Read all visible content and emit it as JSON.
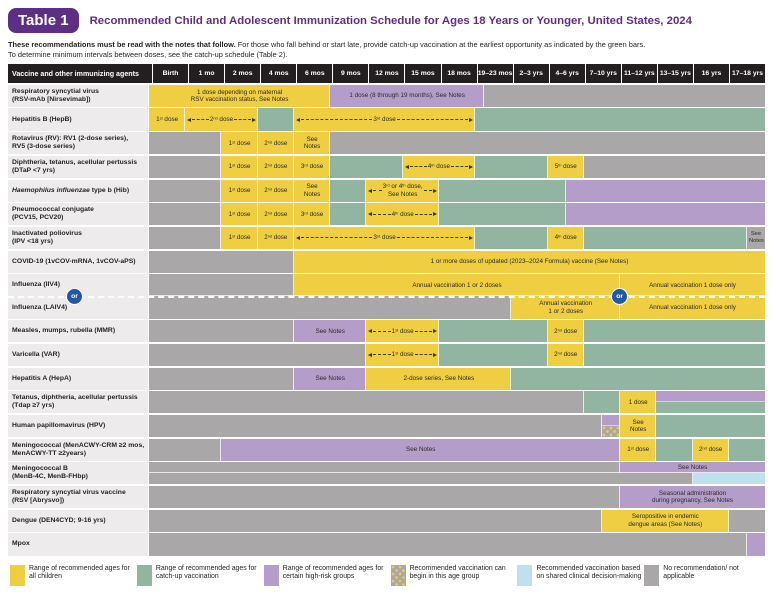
{
  "title": {
    "badge": "Table 1",
    "heading": "Recommended Child and Adolescent Immunization Schedule for Ages 18 Years or Younger, United States, 2024"
  },
  "intro": {
    "bold": "These recommendations must be read with the notes that follow.",
    "rest": "For those who fall behind or start late, provide catch-up vaccination at the earliest opportunity as indicated by the green bars.",
    "line2": "To determine minimum intervals between doses, see the catch-up schedule (Table 2)."
  },
  "colors": {
    "yellow": "#F0CE42",
    "green": "#92B5A1",
    "purple": "#B59DC9",
    "gray": "#A9A7A8",
    "lightblue": "#BFE0EE",
    "labelBg": "#EDEBEC",
    "hdrBg": "#231F20",
    "titlePurple": "#5C2E84",
    "orBlue": "#2058A6"
  },
  "schedule": {
    "corner_header": "Vaccine and other immunizing agents",
    "or_label": "or",
    "age_columns": [
      "Birth",
      "1 mo",
      "2 mos",
      "4 mos",
      "6 mos",
      "9 mos",
      "12 mos",
      "15 mos",
      "18 mos",
      "19–23 mos",
      "2–3 yrs",
      "4–6 yrs",
      "7–10 yrs",
      "11–12 yrs",
      "13–15 yrs",
      "16 yrs",
      "17–18 yrs"
    ],
    "rows": [
      {
        "id": "rsv-mab",
        "label": [
          "Respiratory syncytial virus",
          "(RSV-mAb [Nirsevimab])"
        ],
        "bars": [
          {
            "t": "y",
            "s": 0,
            "e": 5,
            "text": "1 dose depending on maternal\nRSV vaccination status, See Notes"
          },
          {
            "t": "p",
            "s": 5,
            "e": 9.25,
            "text": "1 dose (8 through 19 months), See Notes"
          },
          {
            "t": "gr",
            "s": 9.25,
            "e": 17
          }
        ]
      },
      {
        "id": "hepb",
        "label": [
          "Hepatitis B (HepB)"
        ],
        "bars": [
          {
            "t": "y",
            "s": 0,
            "e": 1,
            "text": "1st dose"
          },
          {
            "t": "y",
            "s": 1,
            "e": 3,
            "text": "2nd dose",
            "arrow": true
          },
          {
            "t": "g",
            "s": 3,
            "e": 4
          },
          {
            "t": "y",
            "s": 4,
            "e": 9,
            "text": "3rd dose",
            "arrow": true
          },
          {
            "t": "g",
            "s": 9,
            "e": 17
          }
        ]
      },
      {
        "id": "rotavirus",
        "label": [
          "Rotavirus (RV): RV1 (2-dose series),",
          "RV5 (3-dose series)"
        ],
        "bars": [
          {
            "t": "gr",
            "s": 0,
            "e": 2
          },
          {
            "t": "y",
            "s": 2,
            "e": 3,
            "text": "1st dose"
          },
          {
            "t": "y",
            "s": 3,
            "e": 4,
            "text": "2nd dose"
          },
          {
            "t": "y",
            "s": 4,
            "e": 5,
            "text": "See Notes"
          },
          {
            "t": "gr",
            "s": 5,
            "e": 17
          }
        ]
      },
      {
        "id": "dtap",
        "label": [
          "Diphtheria, tetanus, acellular pertussis",
          "(DTaP <7 yrs)"
        ],
        "bars": [
          {
            "t": "gr",
            "s": 0,
            "e": 2
          },
          {
            "t": "y",
            "s": 2,
            "e": 3,
            "text": "1st dose"
          },
          {
            "t": "y",
            "s": 3,
            "e": 4,
            "text": "2nd dose"
          },
          {
            "t": "y",
            "s": 4,
            "e": 5,
            "text": "3rd dose"
          },
          {
            "t": "g",
            "s": 5,
            "e": 7
          },
          {
            "t": "y",
            "s": 7,
            "e": 9,
            "text": "4th dose",
            "arrow": true
          },
          {
            "t": "g",
            "s": 9,
            "e": 11
          },
          {
            "t": "y",
            "s": 11,
            "e": 12,
            "text": "5th dose"
          },
          {
            "t": "gr",
            "s": 12,
            "e": 17
          }
        ]
      },
      {
        "id": "hib",
        "label": [
          "Haemophilus influenzae type b (Hib)"
        ],
        "italic": "Haemophilus influenzae",
        "bars": [
          {
            "t": "gr",
            "s": 0,
            "e": 2
          },
          {
            "t": "y",
            "s": 2,
            "e": 3,
            "text": "1st dose"
          },
          {
            "t": "y",
            "s": 3,
            "e": 4,
            "text": "2nd dose"
          },
          {
            "t": "y",
            "s": 4,
            "e": 5,
            "text": "See Notes"
          },
          {
            "t": "g",
            "s": 5,
            "e": 6
          },
          {
            "t": "y",
            "s": 6,
            "e": 8,
            "text": "3rd or 4th dose,\nSee Notes",
            "arrow": true
          },
          {
            "t": "g",
            "s": 8,
            "e": 11.5
          },
          {
            "t": "p",
            "s": 11.5,
            "e": 17
          }
        ]
      },
      {
        "id": "pcv",
        "label": [
          "Pneumococcal conjugate",
          "(PCV15, PCV20)"
        ],
        "bars": [
          {
            "t": "gr",
            "s": 0,
            "e": 2
          },
          {
            "t": "y",
            "s": 2,
            "e": 3,
            "text": "1st dose"
          },
          {
            "t": "y",
            "s": 3,
            "e": 4,
            "text": "2nd dose"
          },
          {
            "t": "y",
            "s": 4,
            "e": 5,
            "text": "3rd dose"
          },
          {
            "t": "g",
            "s": 5,
            "e": 6
          },
          {
            "t": "y",
            "s": 6,
            "e": 8,
            "text": "4th dose",
            "arrow": true
          },
          {
            "t": "g",
            "s": 8,
            "e": 11.5
          },
          {
            "t": "p",
            "s": 11.5,
            "e": 17
          }
        ]
      },
      {
        "id": "ipv",
        "label": [
          "Inactivated poliovirus",
          "(IPV <18 yrs)"
        ],
        "bars": [
          {
            "t": "gr",
            "s": 0,
            "e": 2
          },
          {
            "t": "y",
            "s": 2,
            "e": 3,
            "text": "1st dose"
          },
          {
            "t": "y",
            "s": 3,
            "e": 4,
            "text": "2nd dose"
          },
          {
            "t": "y",
            "s": 4,
            "e": 9,
            "text": "3rd dose",
            "arrow": true
          },
          {
            "t": "g",
            "s": 9,
            "e": 11
          },
          {
            "t": "y",
            "s": 11,
            "e": 12,
            "text": "4th dose"
          },
          {
            "t": "g",
            "s": 12,
            "e": 16.5
          },
          {
            "t": "gr",
            "s": 16.5,
            "e": 17,
            "text": "See\nNotes",
            "small": true
          }
        ]
      },
      {
        "id": "covid-19",
        "label": [
          "COVID-19 (1vCOV-mRNA, 1vCOV-aPS)"
        ],
        "bars": [
          {
            "t": "gr",
            "s": 0,
            "e": 4
          },
          {
            "t": "y",
            "s": 4,
            "e": 17,
            "text": "1 or more doses of updated (2023–2024 Formula) vaccine (See Notes)"
          }
        ]
      },
      {
        "id": "influenza-iiv4",
        "label": [
          "Influenza (IIV4)"
        ],
        "dashed_bottom": true,
        "or_circles": true,
        "bars": [
          {
            "t": "gr",
            "s": 0,
            "e": 4
          },
          {
            "t": "y",
            "s": 4,
            "e": 13,
            "text": "Annual vaccination 1 or 2 doses"
          },
          {
            "t": "y",
            "s": 13,
            "e": 17,
            "text": "Annual vaccination 1 dose only"
          }
        ]
      },
      {
        "id": "influenza-laiv4",
        "label": [
          "Influenza (LAIV4)"
        ],
        "bars": [
          {
            "t": "gr",
            "s": 0,
            "e": 10
          },
          {
            "t": "y",
            "s": 10,
            "e": 13,
            "text": "Annual vaccination\n1 or 2 doses"
          },
          {
            "t": "y",
            "s": 13,
            "e": 17,
            "text": "Annual vaccination 1 dose only"
          }
        ]
      },
      {
        "id": "mmr",
        "label": [
          "Measles, mumps, rubella (MMR)"
        ],
        "bars": [
          {
            "t": "gr",
            "s": 0,
            "e": 4
          },
          {
            "t": "p",
            "s": 4,
            "e": 6,
            "text": "See Notes"
          },
          {
            "t": "y",
            "s": 6,
            "e": 8,
            "text": "1st dose",
            "arrow": true
          },
          {
            "t": "g",
            "s": 8,
            "e": 11
          },
          {
            "t": "y",
            "s": 11,
            "e": 12,
            "text": "2nd dose"
          },
          {
            "t": "g",
            "s": 12,
            "e": 17
          }
        ]
      },
      {
        "id": "var",
        "label": [
          "Varicella (VAR)"
        ],
        "bars": [
          {
            "t": "gr",
            "s": 0,
            "e": 6
          },
          {
            "t": "y",
            "s": 6,
            "e": 8,
            "text": "1st dose",
            "arrow": true
          },
          {
            "t": "g",
            "s": 8,
            "e": 11
          },
          {
            "t": "y",
            "s": 11,
            "e": 12,
            "text": "2nd dose"
          },
          {
            "t": "g",
            "s": 12,
            "e": 17
          }
        ]
      },
      {
        "id": "hepa",
        "label": [
          "Hepatitis A (HepA)"
        ],
        "bars": [
          {
            "t": "gr",
            "s": 0,
            "e": 4
          },
          {
            "t": "p",
            "s": 4,
            "e": 6,
            "text": "See Notes"
          },
          {
            "t": "y",
            "s": 6,
            "e": 10,
            "text": "2-dose series, See Notes"
          },
          {
            "t": "g",
            "s": 10,
            "e": 17
          }
        ]
      },
      {
        "id": "tdap",
        "label": [
          "Tetanus, diphtheria, acellular pertussis",
          "(Tdap ≥7 yrs)"
        ],
        "bars": [
          {
            "t": "gr",
            "s": 0,
            "e": 12
          },
          {
            "t": "g",
            "s": 12,
            "e": 13
          },
          {
            "t": "y",
            "s": 13,
            "e": 14,
            "text": "1 dose"
          },
          {
            "t": "split",
            "s": 14,
            "e": 17,
            "top": "p",
            "bottom": "g"
          }
        ]
      },
      {
        "id": "hpv",
        "label": [
          "Human papillomavirus (HPV)"
        ],
        "bars": [
          {
            "t": "gr",
            "s": 0,
            "e": 12.5
          },
          {
            "t": "split",
            "s": 12.5,
            "e": 13,
            "top": "p",
            "bottom": "dot"
          },
          {
            "t": "y",
            "s": 13,
            "e": 14,
            "text": "See\nNotes"
          },
          {
            "t": "g",
            "s": 14,
            "e": 17
          }
        ]
      },
      {
        "id": "menacwy",
        "label": [
          "Meningococcal (MenACWY-CRM ≥2 mos,",
          "MenACWY-TT ≥2years)"
        ],
        "bars": [
          {
            "t": "gr",
            "s": 0,
            "e": 2
          },
          {
            "t": "p",
            "s": 2,
            "e": 13,
            "text": "See Notes"
          },
          {
            "t": "y",
            "s": 13,
            "e": 14,
            "text": "1st dose"
          },
          {
            "t": "g",
            "s": 14,
            "e": 15
          },
          {
            "t": "y",
            "s": 15,
            "e": 16,
            "text": "2nd dose"
          },
          {
            "t": "g",
            "s": 16,
            "e": 17
          }
        ]
      },
      {
        "id": "menb",
        "label": [
          "Meningococcal B",
          "(MenB-4C, MenB-FHbp)"
        ],
        "bars": [
          {
            "t": "gr",
            "s": 0,
            "e": 13,
            "half": "top"
          },
          {
            "t": "p",
            "s": 13,
            "e": 17,
            "text": "See Notes",
            "half": "top"
          },
          {
            "t": "gr",
            "s": 0,
            "e": 15,
            "half": "bot"
          },
          {
            "t": "lb",
            "s": 15,
            "e": 17,
            "half": "bot"
          }
        ]
      },
      {
        "id": "rsv-abrysvo",
        "label": [
          "Respiratory syncytial virus vaccine",
          "(RSV [Abrysvo])"
        ],
        "bars": [
          {
            "t": "gr",
            "s": 0,
            "e": 13
          },
          {
            "t": "p",
            "s": 13,
            "e": 17,
            "text": "Seasonal administration\nduring pregnancy, See Notes"
          }
        ]
      },
      {
        "id": "dengue",
        "label": [
          "Dengue (DEN4CYD; 9-16 yrs)"
        ],
        "bars": [
          {
            "t": "gr",
            "s": 0,
            "e": 12.5
          },
          {
            "t": "y",
            "s": 12.5,
            "e": 16,
            "text": "Seropositive in endemic\ndengue areas (See Notes)"
          },
          {
            "t": "gr",
            "s": 16,
            "e": 17
          }
        ]
      },
      {
        "id": "mpox",
        "label": [
          "Mpox"
        ],
        "bars": [
          {
            "t": "gr",
            "s": 0,
            "e": 16.5
          },
          {
            "t": "p",
            "s": 16.5,
            "e": 17
          }
        ]
      }
    ]
  },
  "legend": [
    {
      "swatch": "y",
      "text": "Range of recommended ages for all children"
    },
    {
      "swatch": "g",
      "text": "Range of recommended ages for catch-up vaccination"
    },
    {
      "swatch": "p",
      "text": "Range of recommended ages for certain high-risk groups"
    },
    {
      "swatch": "dot",
      "text": "Recommended vaccination can begin in this age group"
    },
    {
      "swatch": "lb",
      "text": "Recommended vaccination based on shared clinical decision-making"
    },
    {
      "swatch": "gr",
      "text": "No recommendation/ not applicable"
    }
  ]
}
